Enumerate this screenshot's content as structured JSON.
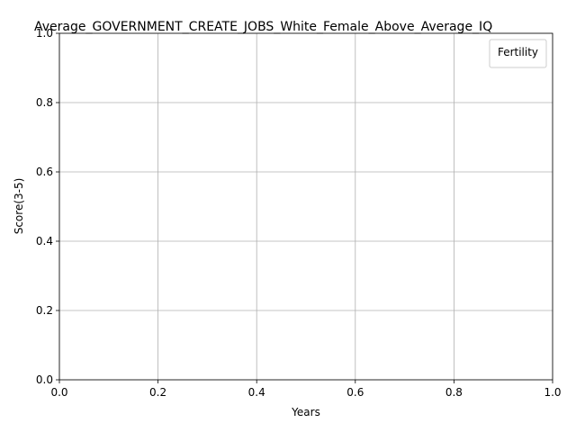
{
  "chart_data": {
    "type": "line",
    "title": "Average_GOVERNMENT_CREATE_JOBS_White_Female_Above_Average_IQ",
    "xlabel": "Years",
    "ylabel": "Score(3-5)",
    "xlim": [
      0.0,
      1.0
    ],
    "ylim": [
      0.0,
      1.0
    ],
    "xticks": [
      "0.0",
      "0.2",
      "0.4",
      "0.6",
      "0.8",
      "1.0"
    ],
    "yticks": [
      "0.0",
      "0.2",
      "0.4",
      "0.6",
      "0.8",
      "1.0"
    ],
    "grid": true,
    "legend": {
      "title": "Fertility",
      "placement": "top-right",
      "entries": []
    },
    "series": []
  }
}
